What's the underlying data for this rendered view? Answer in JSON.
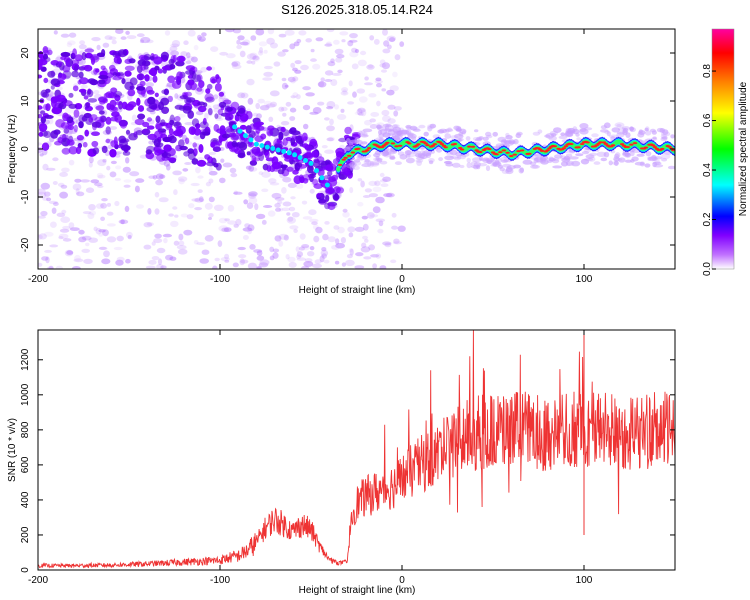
{
  "title": "S126.2025.318.05.14.R24",
  "chart_data": [
    {
      "type": "heatmap",
      "xlabel": "Height of straight line (km)",
      "ylabel": "Frequency (Hz)",
      "xlim": [
        -200,
        150
      ],
      "ylim": [
        -25,
        25
      ],
      "x_ticks": [
        -200,
        -100,
        0,
        100
      ],
      "y_ticks": [
        -20,
        -10,
        0,
        10,
        20
      ],
      "colorbar": {
        "label": "Normalized spectral amplitude",
        "range": [
          0,
          0.97
        ],
        "ticks": [
          "0.0",
          "0.2",
          "0.4",
          "0.6",
          "0.8"
        ],
        "colors": [
          "#ffffff",
          "#c070ff",
          "#8000ff",
          "#0000ff",
          "#00ffff",
          "#00ff00",
          "#ffff00",
          "#ff8000",
          "#ff0000",
          "#ff00a0"
        ]
      },
      "ridge": {
        "x": [
          -200,
          -150,
          -120,
          -100,
          -90,
          -80,
          -70,
          -60,
          -50,
          -40,
          -30,
          -20,
          -10,
          0,
          20,
          40,
          60,
          80,
          100,
          120,
          150
        ],
        "y": [
          10,
          10,
          8,
          7,
          4,
          1,
          0,
          -1,
          -3,
          -8,
          -1,
          0,
          1,
          1,
          1,
          0,
          -1,
          0,
          1,
          1,
          0
        ]
      }
    },
    {
      "type": "line",
      "xlabel": "Height of straight line (km)",
      "ylabel": "SNR (10 * v/v)",
      "xlim": [
        -200,
        150
      ],
      "ylim": [
        0,
        1370
      ],
      "x_ticks": [
        -200,
        -100,
        0,
        100
      ],
      "y_ticks": [
        0,
        200,
        400,
        600,
        800,
        1000,
        1200
      ],
      "color": "#ee3333",
      "series": [
        {
          "x": [
            -200,
            -180,
            -160,
            -140,
            -120,
            -100,
            -95,
            -90,
            -85,
            -80,
            -75,
            -70,
            -65,
            -60,
            -55,
            -50,
            -45,
            -40,
            -35,
            -30,
            -28,
            -25,
            -20,
            -15,
            -10,
            -5,
            0,
            5,
            10,
            15,
            20,
            25,
            30,
            40,
            50,
            60,
            70,
            80,
            90,
            100,
            110,
            120,
            130,
            140,
            150
          ],
          "values": [
            25,
            25,
            28,
            35,
            45,
            55,
            70,
            80,
            110,
            160,
            240,
            290,
            260,
            220,
            260,
            230,
            130,
            60,
            40,
            45,
            300,
            380,
            420,
            440,
            460,
            480,
            520,
            560,
            600,
            630,
            660,
            700,
            740,
            780,
            790,
            800,
            790,
            780,
            790,
            800,
            810,
            780,
            790,
            800,
            790
          ]
        }
      ]
    }
  ]
}
